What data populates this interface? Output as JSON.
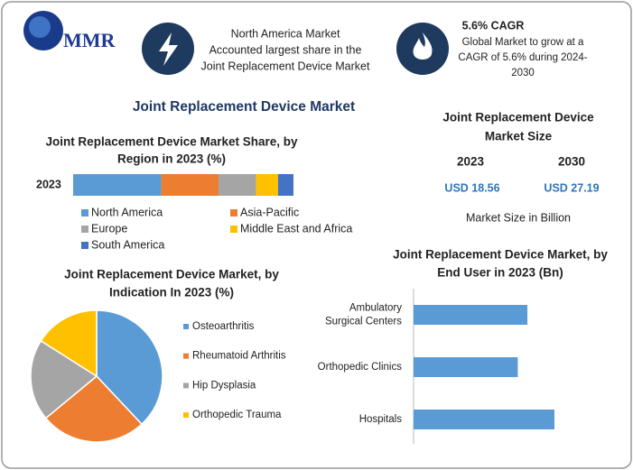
{
  "header": {
    "logo": "MMR",
    "north_america": [
      "North America Market",
      "Accounted largest share in the",
      "Joint Replacement Device Market"
    ],
    "cagr_title": "5.6% CAGR",
    "cagr_text": [
      "Global Market to grow at a",
      "CAGR of 5.6% during 2024-",
      "2030"
    ]
  },
  "title": "Joint Replacement Device Market",
  "market_size": {
    "title": [
      "Joint Replacement Device",
      "Market Size"
    ],
    "years": [
      "2023",
      "2030"
    ],
    "values": [
      "USD 18.56",
      "USD 27.19"
    ],
    "note": "Market Size in Billion"
  },
  "chart_data": [
    {
      "type": "stacked_bar",
      "title": [
        "Joint Replacement Device Market Share, by",
        "Region in 2023 (%)"
      ],
      "categories": [
        "2023"
      ],
      "series": [
        {
          "name": "North America",
          "color": "#5b9bd5",
          "values": [
            40
          ]
        },
        {
          "name": "Asia-Pacific",
          "color": "#ed7d31",
          "values": [
            26
          ]
        },
        {
          "name": "Europe",
          "color": "#a5a5a5",
          "values": [
            17
          ]
        },
        {
          "name": "Middle East and Africa",
          "color": "#ffc000",
          "values": [
            10
          ]
        },
        {
          "name": "South America",
          "color": "#4472c4",
          "values": [
            7
          ]
        }
      ]
    },
    {
      "type": "pie",
      "title": [
        "Joint Replacement Device Market, by",
        "Indication In 2023 (%)"
      ],
      "categories": [
        "Osteoarthritis",
        "Rheumatoid Arthritis",
        "Hip Dysplasia",
        "Orthopedic Trauma"
      ],
      "values": [
        38,
        26,
        20,
        16
      ],
      "colors": [
        "#5b9bd5",
        "#ed7d31",
        "#a5a5a5",
        "#ffc000"
      ]
    },
    {
      "type": "hbar",
      "title": [
        "Joint Replacement Device Market, by",
        "End User in 2023 (Bn)"
      ],
      "categories": [
        [
          "Ambulatory",
          "Surgical Centers"
        ],
        [
          "Orthopedic Clinics"
        ],
        [
          "Hospitals"
        ]
      ],
      "values": [
        5.9,
        5.4,
        7.3
      ],
      "color": "#5b9bd5"
    }
  ]
}
